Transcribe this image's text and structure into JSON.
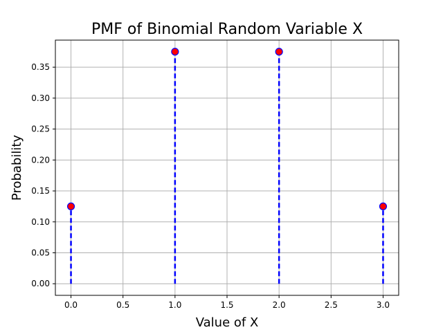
{
  "chart_data": {
    "type": "scatter",
    "title": "PMF of Binomial Random Variable X",
    "xlabel": "Value of X",
    "ylabel": "Probability",
    "x": [
      0,
      1,
      2,
      3
    ],
    "y": [
      0.125,
      0.375,
      0.375,
      0.125
    ],
    "xlim": [
      -0.15,
      3.15
    ],
    "ylim": [
      -0.01875,
      0.39375
    ],
    "xticks": [
      0.0,
      0.5,
      1.0,
      1.5,
      2.0,
      2.5,
      3.0
    ],
    "xtick_labels": [
      "0.0",
      "0.5",
      "1.0",
      "1.5",
      "2.0",
      "2.5",
      "3.0"
    ],
    "yticks": [
      0.0,
      0.05,
      0.1,
      0.15,
      0.2,
      0.25,
      0.3,
      0.35
    ],
    "ytick_labels": [
      "0.00",
      "0.05",
      "0.10",
      "0.15",
      "0.20",
      "0.25",
      "0.30",
      "0.35"
    ],
    "grid": true,
    "marker_color": "#ff0000",
    "marker_edge_color": "#0000ff",
    "stem_color": "#0000ff",
    "stem_style": "dashed"
  }
}
